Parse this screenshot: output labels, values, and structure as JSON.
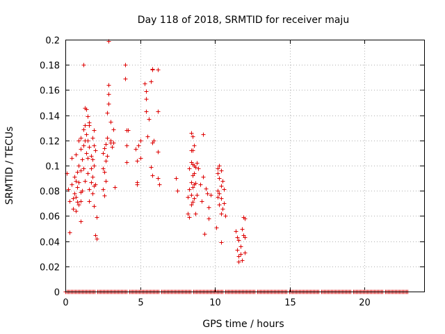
{
  "chart_data": {
    "type": "scatter",
    "title": "Day 118 of 2018, SRMTID for receiver maju",
    "xlabel": "GPS time / hours",
    "ylabel": "SRMTID / TECUs",
    "xlim": [
      0,
      24
    ],
    "ylim": [
      0,
      0.2
    ],
    "xticks": [
      0,
      5,
      10,
      15,
      20
    ],
    "xtick_labels": [
      "0",
      "5",
      "10",
      "15",
      "20"
    ],
    "yticks": [
      0,
      0.02,
      0.04,
      0.06,
      0.08,
      0.1,
      0.12,
      0.14,
      0.16,
      0.18,
      0.2
    ],
    "ytick_labels": [
      "0",
      "0.02",
      "0.04",
      "0.06",
      "0.08",
      "0.1",
      "0.12",
      "0.14",
      "0.16",
      "0.18",
      "0.2"
    ],
    "grid": true,
    "marker": "+",
    "color": "#dd0000",
    "zero_band": {
      "x_start": 0,
      "x_end": 22.9,
      "y": 0
    },
    "points": [
      [
        0.1,
        0.094
      ],
      [
        0.2,
        0.081
      ],
      [
        0.3,
        0.072
      ],
      [
        0.3,
        0.047
      ],
      [
        0.4,
        0.106
      ],
      [
        0.4,
        0.085
      ],
      [
        0.5,
        0.074
      ],
      [
        0.5,
        0.066
      ],
      [
        0.6,
        0.091
      ],
      [
        0.6,
        0.078
      ],
      [
        0.7,
        0.109
      ],
      [
        0.7,
        0.088
      ],
      [
        0.7,
        0.075
      ],
      [
        0.7,
        0.064
      ],
      [
        0.8,
        0.095
      ],
      [
        0.8,
        0.083
      ],
      [
        0.8,
        0.071
      ],
      [
        0.9,
        0.12
      ],
      [
        0.9,
        0.1
      ],
      [
        0.9,
        0.087
      ],
      [
        0.9,
        0.069
      ],
      [
        1.0,
        0.122
      ],
      [
        1.0,
        0.113
      ],
      [
        1.0,
        0.096
      ],
      [
        1.0,
        0.079
      ],
      [
        1.0,
        0.072
      ],
      [
        1.0,
        0.056
      ],
      [
        1.1,
        0.105
      ],
      [
        1.1,
        0.08
      ],
      [
        1.2,
        0.18
      ],
      [
        1.2,
        0.129
      ],
      [
        1.2,
        0.116
      ],
      [
        1.2,
        0.098
      ],
      [
        1.3,
        0.146
      ],
      [
        1.3,
        0.132
      ],
      [
        1.3,
        0.12
      ],
      [
        1.3,
        0.088
      ],
      [
        1.4,
        0.145
      ],
      [
        1.4,
        0.125
      ],
      [
        1.4,
        0.11
      ],
      [
        1.5,
        0.139
      ],
      [
        1.5,
        0.12
      ],
      [
        1.5,
        0.106
      ],
      [
        1.5,
        0.094
      ],
      [
        1.6,
        0.134
      ],
      [
        1.6,
        0.132
      ],
      [
        1.6,
        0.115
      ],
      [
        1.6,
        0.081
      ],
      [
        1.6,
        0.072
      ],
      [
        1.7,
        0.108
      ],
      [
        1.7,
        0.098
      ],
      [
        1.7,
        0.087
      ],
      [
        1.8,
        0.122
      ],
      [
        1.8,
        0.105
      ],
      [
        1.8,
        0.091
      ],
      [
        1.8,
        0.078
      ],
      [
        1.9,
        0.128
      ],
      [
        1.9,
        0.116
      ],
      [
        1.9,
        0.1
      ],
      [
        1.9,
        0.084
      ],
      [
        1.9,
        0.068
      ],
      [
        2.0,
        0.112
      ],
      [
        2.0,
        0.085
      ],
      [
        2.0,
        0.045
      ],
      [
        2.1,
        0.042
      ],
      [
        2.1,
        0.059
      ],
      [
        2.5,
        0.11
      ],
      [
        2.5,
        0.098
      ],
      [
        2.5,
        0.081
      ],
      [
        2.6,
        0.114
      ],
      [
        2.6,
        0.095
      ],
      [
        2.6,
        0.076
      ],
      [
        2.7,
        0.117
      ],
      [
        2.7,
        0.104
      ],
      [
        2.7,
        0.088
      ],
      [
        2.8,
        0.142
      ],
      [
        2.8,
        0.122
      ],
      [
        2.8,
        0.108
      ],
      [
        2.9,
        0.199
      ],
      [
        2.9,
        0.164
      ],
      [
        2.9,
        0.157
      ],
      [
        2.9,
        0.149
      ],
      [
        3.0,
        0.135
      ],
      [
        3.0,
        0.12
      ],
      [
        3.0,
        0.118
      ],
      [
        3.1,
        0.115
      ],
      [
        3.2,
        0.129
      ],
      [
        3.2,
        0.118
      ],
      [
        3.3,
        0.083
      ],
      [
        4.0,
        0.18
      ],
      [
        4.0,
        0.169
      ],
      [
        4.1,
        0.116
      ],
      [
        4.1,
        0.103
      ],
      [
        4.1,
        0.128
      ],
      [
        4.2,
        0.128
      ],
      [
        4.7,
        0.113
      ],
      [
        4.8,
        0.104
      ],
      [
        4.8,
        0.085
      ],
      [
        4.8,
        0.087
      ],
      [
        4.9,
        0.116
      ],
      [
        5.0,
        0.106
      ],
      [
        5.0,
        0.12
      ],
      [
        5.3,
        0.165
      ],
      [
        5.4,
        0.143
      ],
      [
        5.4,
        0.159
      ],
      [
        5.4,
        0.153
      ],
      [
        5.5,
        0.123
      ],
      [
        5.6,
        0.137
      ],
      [
        5.7,
        0.099
      ],
      [
        5.7,
        0.167
      ],
      [
        5.8,
        0.177
      ],
      [
        5.8,
        0.176
      ],
      [
        5.8,
        0.118
      ],
      [
        5.8,
        0.092
      ],
      [
        5.9,
        0.12
      ],
      [
        6.2,
        0.176
      ],
      [
        6.2,
        0.143
      ],
      [
        6.2,
        0.111
      ],
      [
        6.2,
        0.09
      ],
      [
        6.3,
        0.085
      ],
      [
        7.4,
        0.09
      ],
      [
        7.5,
        0.08
      ],
      [
        8.2,
        0.075
      ],
      [
        8.2,
        0.062
      ],
      [
        8.3,
        0.098
      ],
      [
        8.3,
        0.081
      ],
      [
        8.3,
        0.059
      ],
      [
        8.4,
        0.126
      ],
      [
        8.4,
        0.112
      ],
      [
        8.4,
        0.103
      ],
      [
        8.4,
        0.087
      ],
      [
        8.4,
        0.077
      ],
      [
        8.4,
        0.069
      ],
      [
        8.5,
        0.123
      ],
      [
        8.5,
        0.112
      ],
      [
        8.5,
        0.101
      ],
      [
        8.5,
        0.092
      ],
      [
        8.5,
        0.083
      ],
      [
        8.5,
        0.071
      ],
      [
        8.6,
        0.116
      ],
      [
        8.6,
        0.1
      ],
      [
        8.6,
        0.094
      ],
      [
        8.6,
        0.085
      ],
      [
        8.6,
        0.074
      ],
      [
        8.7,
        0.099
      ],
      [
        8.7,
        0.086
      ],
      [
        8.7,
        0.062
      ],
      [
        8.8,
        0.102
      ],
      [
        8.8,
        0.077
      ],
      [
        8.9,
        0.098
      ],
      [
        9.0,
        0.085
      ],
      [
        9.1,
        0.072
      ],
      [
        9.2,
        0.125
      ],
      [
        9.2,
        0.091
      ],
      [
        9.3,
        0.046
      ],
      [
        9.4,
        0.082
      ],
      [
        9.5,
        0.078
      ],
      [
        9.6,
        0.067
      ],
      [
        9.6,
        0.058
      ],
      [
        9.7,
        0.077
      ],
      [
        10.1,
        0.051
      ],
      [
        10.2,
        0.098
      ],
      [
        10.2,
        0.094
      ],
      [
        10.2,
        0.08
      ],
      [
        10.2,
        0.075
      ],
      [
        10.3,
        0.1
      ],
      [
        10.3,
        0.09
      ],
      [
        10.3,
        0.078
      ],
      [
        10.3,
        0.069
      ],
      [
        10.4,
        0.096
      ],
      [
        10.4,
        0.084
      ],
      [
        10.4,
        0.074
      ],
      [
        10.4,
        0.062
      ],
      [
        10.4,
        0.039
      ],
      [
        10.5,
        0.088
      ],
      [
        10.5,
        0.066
      ],
      [
        10.6,
        0.081
      ],
      [
        10.6,
        0.07
      ],
      [
        10.7,
        0.06
      ],
      [
        11.4,
        0.048
      ],
      [
        11.5,
        0.043
      ],
      [
        11.5,
        0.033
      ],
      [
        11.6,
        0.041
      ],
      [
        11.6,
        0.028
      ],
      [
        11.6,
        0.024
      ],
      [
        11.7,
        0.036
      ],
      [
        11.7,
        0.03
      ],
      [
        11.8,
        0.025
      ],
      [
        11.8,
        0.05
      ],
      [
        11.9,
        0.059
      ],
      [
        11.9,
        0.045
      ],
      [
        12.0,
        0.043
      ],
      [
        12.0,
        0.058
      ],
      [
        12.0,
        0.031
      ]
    ]
  }
}
